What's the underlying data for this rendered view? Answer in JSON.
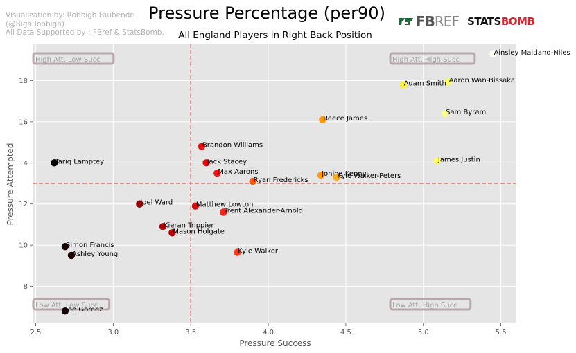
{
  "credits": {
    "line1": "Visualization by: Robbigh Faubendri",
    "line2": "(@BighRobbigh)",
    "line3": "All Data Supported by : FBref & StatsBomb."
  },
  "logos": {
    "fbref_a": "FB",
    "fbref_b": "REF",
    "statsbomb_a": "STATS",
    "statsbomb_b": "BOMB"
  },
  "chart_data": {
    "type": "scatter",
    "title": "Pressure Percentage (per90)",
    "subtitle": "All England Players in Right Back Position",
    "xlabel": "Pressure Success",
    "ylabel": "Pressure Attempted",
    "xlim": [
      2.48,
      5.6
    ],
    "ylim": [
      6.2,
      19.8
    ],
    "xticks": [
      2.5,
      3.0,
      3.5,
      4.0,
      4.5,
      5.0,
      5.5
    ],
    "yticks": [
      8,
      10,
      12,
      14,
      16,
      18
    ],
    "grid": true,
    "reference_lines": {
      "x": 3.5,
      "y": 13.0,
      "color": "#e05a4b"
    },
    "quadrant_labels": [
      "High Att, Low Succ",
      "High Att, High Succ",
      "Low Att, Low Succ",
      "Low Att, High Succ"
    ],
    "points": [
      {
        "name": "Ainsley Maitland-Niles",
        "x": 5.45,
        "y": 19.3,
        "color": "#fffef0"
      },
      {
        "name": "Aaron Wan-Bissaka",
        "x": 5.16,
        "y": 17.95,
        "color": "#ffff5a"
      },
      {
        "name": "Adam Smith",
        "x": 4.87,
        "y": 17.8,
        "color": "#ffee3a"
      },
      {
        "name": "Sam Byram",
        "x": 5.14,
        "y": 16.4,
        "color": "#ffff88"
      },
      {
        "name": "Reece James",
        "x": 4.35,
        "y": 16.1,
        "color": "#ff9a10"
      },
      {
        "name": "James Justin",
        "x": 5.09,
        "y": 14.1,
        "color": "#ffff60"
      },
      {
        "name": "Brandon Williams",
        "x": 3.57,
        "y": 14.8,
        "color": "#e81010"
      },
      {
        "name": "Tariq Lamptey",
        "x": 2.62,
        "y": 14.0,
        "color": "#000000"
      },
      {
        "name": "Jack Stacey",
        "x": 3.6,
        "y": 14.0,
        "color": "#e80a0a"
      },
      {
        "name": "Max Aarons",
        "x": 3.67,
        "y": 13.5,
        "color": "#ee1818"
      },
      {
        "name": "Ryan Fredericks",
        "x": 3.9,
        "y": 13.1,
        "color": "#ff5a10"
      },
      {
        "name": "Jonjoe Kenny",
        "x": 4.34,
        "y": 13.4,
        "color": "#ff9a10"
      },
      {
        "name": "Kyle Walker-Peters",
        "x": 4.44,
        "y": 13.3,
        "color": "#ffaa1a"
      },
      {
        "name": "Joel Ward",
        "x": 3.17,
        "y": 12.0,
        "color": "#9a0000"
      },
      {
        "name": "Matthew Lowton",
        "x": 3.53,
        "y": 11.9,
        "color": "#dd0808"
      },
      {
        "name": "Trent Alexander-Arnold",
        "x": 3.71,
        "y": 11.6,
        "color": "#f02418"
      },
      {
        "name": "Kieran Trippier",
        "x": 3.32,
        "y": 10.9,
        "color": "#b00000"
      },
      {
        "name": "Mason Holgate",
        "x": 3.38,
        "y": 10.6,
        "color": "#c00000"
      },
      {
        "name": "Simon Francis",
        "x": 2.69,
        "y": 9.93,
        "color": "#1a0000"
      },
      {
        "name": "Ashley Young",
        "x": 2.73,
        "y": 9.5,
        "color": "#220000"
      },
      {
        "name": "Kyle Walker",
        "x": 3.8,
        "y": 9.65,
        "color": "#ff3a1a"
      },
      {
        "name": "Joe Gomez",
        "x": 2.69,
        "y": 6.8,
        "color": "#1a0000"
      }
    ]
  }
}
